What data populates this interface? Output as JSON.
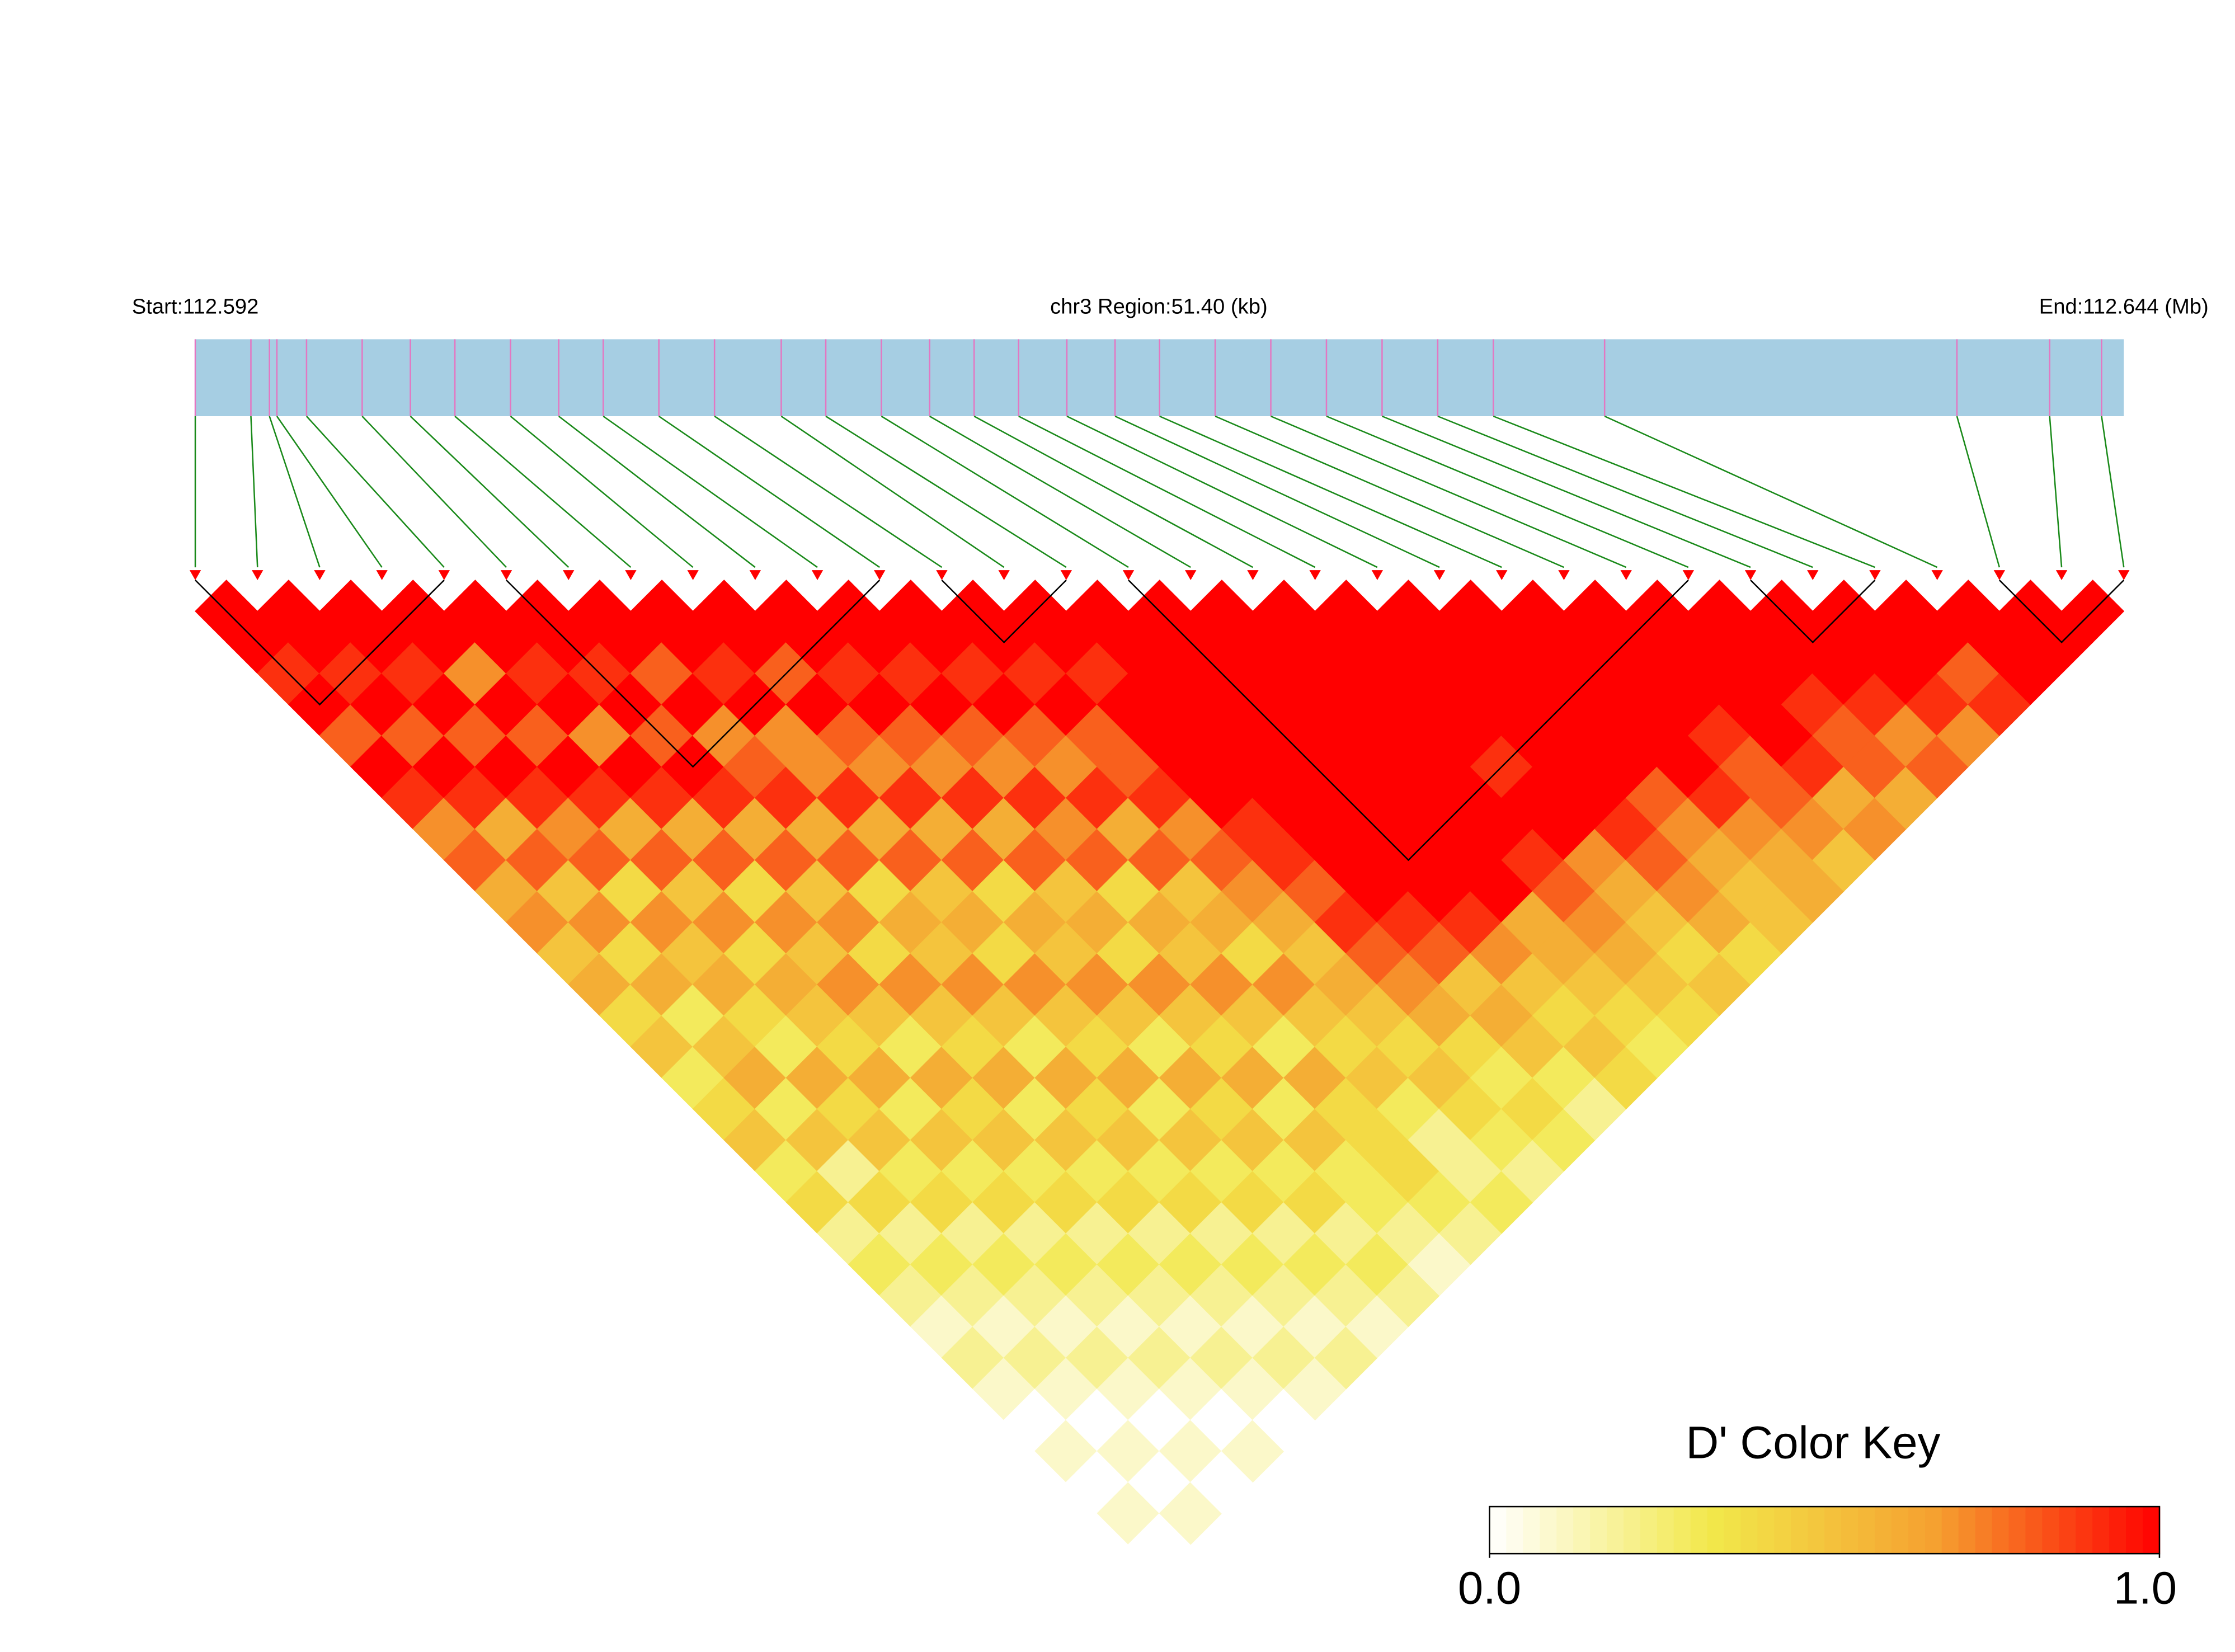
{
  "chart_data": {
    "type": "ld-heatmap",
    "start_label": "Start:112.592",
    "region_label": "chr3 Region:51.40 (kb)",
    "end_label": "End:112.644 (Mb)",
    "xlim": [
      112.592,
      112.644
    ],
    "snp_positions": [
      112.592,
      112.5935,
      112.594,
      112.5942,
      112.595,
      112.5965,
      112.5978,
      112.599,
      112.6005,
      112.6018,
      112.603,
      112.6045,
      112.606,
      112.6078,
      112.609,
      112.6105,
      112.6118,
      112.613,
      112.6142,
      112.6155,
      112.6168,
      112.618,
      112.6195,
      112.621,
      112.6225,
      112.624,
      112.6255,
      112.627,
      112.63,
      112.6395,
      112.642,
      112.6434
    ],
    "dprime": [
      [
        1
      ],
      [
        1,
        1
      ],
      [
        0.9,
        1,
        1
      ],
      [
        1,
        0.9,
        1,
        1
      ],
      [
        0.8,
        1,
        0.9,
        1,
        1
      ],
      [
        1,
        0.8,
        1,
        0.7,
        1,
        1
      ],
      [
        0.9,
        1,
        0.8,
        1,
        0.9,
        1,
        1
      ],
      [
        0.7,
        0.9,
        1,
        0.8,
        1,
        0.9,
        1,
        1
      ],
      [
        0.8,
        0.6,
        0.9,
        1,
        0.7,
        1,
        0.8,
        1,
        1
      ],
      [
        0.6,
        0.8,
        0.7,
        0.9,
        1,
        0.8,
        1,
        0.9,
        1,
        1
      ],
      [
        0.7,
        0.5,
        0.8,
        0.6,
        0.9,
        1,
        0.7,
        1,
        0.8,
        1,
        1
      ],
      [
        0.5,
        0.7,
        0.4,
        0.8,
        0.6,
        0.9,
        0.8,
        0.7,
        1,
        0.9,
        1,
        1
      ],
      [
        0.6,
        0.4,
        0.7,
        0.5,
        0.8,
        0.6,
        0.9,
        0.7,
        0.8,
        1,
        0.9,
        1,
        1
      ],
      [
        0.4,
        0.6,
        0.5,
        0.7,
        0.4,
        0.8,
        0.6,
        0.9,
        0.7,
        0.8,
        1,
        0.9,
        1,
        1
      ],
      [
        0.5,
        0.3,
        0.6,
        0.4,
        0.7,
        0.5,
        0.8,
        0.6,
        0.9,
        0.7,
        0.8,
        1,
        0.9,
        1,
        1
      ],
      [
        0.3,
        0.5,
        0.4,
        0.6,
        0.5,
        0.7,
        0.4,
        0.8,
        0.6,
        0.9,
        0.7,
        0.8,
        1,
        0.9,
        1,
        1
      ],
      [
        0.4,
        0.6,
        0.3,
        0.5,
        0.7,
        0.4,
        0.6,
        0.5,
        0.8,
        0.6,
        0.9,
        0.7,
        0.8,
        1,
        1,
        1,
        1
      ],
      [
        0.5,
        0.3,
        0.6,
        0.4,
        0.5,
        0.7,
        0.5,
        0.6,
        0.4,
        0.8,
        0.7,
        0.9,
        0.8,
        1,
        1,
        1,
        1,
        1
      ],
      [
        0.3,
        0.5,
        0.4,
        0.6,
        0.3,
        0.5,
        0.7,
        0.4,
        0.6,
        0.5,
        0.8,
        0.6,
        0.9,
        1,
        1,
        1,
        1,
        1,
        1
      ],
      [
        0.4,
        0.2,
        0.5,
        0.3,
        0.6,
        0.4,
        0.5,
        0.7,
        0.5,
        0.6,
        0.4,
        0.8,
        0.7,
        1,
        1,
        1,
        1,
        1,
        1,
        1
      ],
      [
        0.2,
        0.4,
        0.3,
        0.5,
        0.4,
        0.6,
        0.3,
        0.5,
        0.7,
        0.4,
        0.6,
        0.5,
        0.8,
        0.9,
        1,
        1,
        1,
        1,
        1,
        1,
        1
      ],
      [
        0.3,
        0.2,
        0.4,
        0.3,
        0.5,
        0.3,
        0.6,
        0.4,
        0.5,
        0.7,
        0.5,
        0.6,
        0.7,
        0.9,
        1,
        1,
        1,
        1,
        1,
        1,
        1,
        1
      ],
      [
        0.2,
        0.3,
        0.2,
        0.4,
        0.3,
        0.5,
        0.4,
        0.6,
        0.3,
        0.5,
        0.7,
        0.4,
        0.6,
        0.8,
        1,
        1,
        1,
        1,
        1,
        1,
        1,
        1,
        1
      ],
      [
        0.1,
        0.2,
        0.3,
        0.2,
        0.4,
        0.3,
        0.5,
        0.3,
        0.6,
        0.4,
        0.5,
        0.7,
        0.5,
        0.9,
        1,
        1,
        1,
        1,
        0.9,
        1,
        1,
        1,
        1,
        1
      ],
      [
        0.2,
        0.1,
        0.2,
        0.3,
        0.2,
        0.4,
        0.3,
        0.5,
        0.4,
        0.6,
        0.3,
        0.5,
        0.6,
        0.8,
        0.9,
        1,
        1,
        1,
        1,
        1,
        1,
        1,
        1,
        1,
        1
      ],
      [
        0.1,
        0.2,
        0.1,
        0.2,
        0.3,
        0.2,
        0.4,
        0.3,
        0.5,
        0.3,
        0.6,
        0.4,
        0.5,
        0.7,
        0.8,
        0.9,
        1,
        0.9,
        1,
        1,
        1,
        1,
        1,
        1,
        1,
        1
      ],
      [
        0,
        0.1,
        0.2,
        0.1,
        0.2,
        0.3,
        0.2,
        0.4,
        0.3,
        0.5,
        0.4,
        0.5,
        0.4,
        0.6,
        0.5,
        0.7,
        0.6,
        0.8,
        0.7,
        0.9,
        0.8,
        1,
        0.9,
        1,
        1,
        1,
        1
      ],
      [
        0.1,
        0,
        0.1,
        0.2,
        0.1,
        0.2,
        0.3,
        0.2,
        0.4,
        0.3,
        0.4,
        0.3,
        0.5,
        0.4,
        0.6,
        0.5,
        0.6,
        0.7,
        0.6,
        0.8,
        0.7,
        0.9,
        0.8,
        1,
        0.9,
        1,
        1,
        1
      ],
      [
        0,
        0.1,
        0,
        0.1,
        0.2,
        0.1,
        0.2,
        0.3,
        0.2,
        0.3,
        0.4,
        0.2,
        0.4,
        0.3,
        0.5,
        0.4,
        0.5,
        0.6,
        0.5,
        0.7,
        0.6,
        0.7,
        0.8,
        0.9,
        0.8,
        0.9,
        1,
        1,
        1
      ],
      [
        0.1,
        0,
        0.1,
        0,
        0.1,
        0.2,
        0.1,
        0.2,
        0.3,
        0.2,
        0.3,
        0.2,
        0.3,
        0.4,
        0.3,
        0.5,
        0.4,
        0.5,
        0.4,
        0.6,
        0.5,
        0.6,
        0.7,
        0.6,
        0.8,
        0.7,
        0.9,
        0.8,
        1,
        1
      ],
      [
        0,
        0.1,
        0,
        0.1,
        0,
        0.1,
        0.2,
        0.1,
        0.2,
        0.1,
        0.2,
        0.3,
        0.2,
        0.3,
        0.2,
        0.4,
        0.3,
        0.4,
        0.5,
        0.4,
        0.5,
        0.6,
        0.5,
        0.7,
        0.6,
        0.8,
        0.7,
        0.9,
        1,
        1,
        1
      ]
    ],
    "blocks": [
      [
        0,
        4
      ],
      [
        5,
        11
      ],
      [
        12,
        14
      ],
      [
        15,
        24
      ],
      [
        25,
        27
      ],
      [
        29,
        31
      ]
    ],
    "colorscale": [
      "#ffffff",
      "#f2e84a",
      "#f5a030",
      "#ff0000"
    ],
    "bar_color": "#a6cee3",
    "snp_line_color": "#e377c2",
    "connector_color": "#1a8a1a",
    "key_title": "D' Color Key",
    "key_ticks": [
      {
        "value": 0,
        "label": "0.0"
      },
      {
        "value": 1,
        "label": "1.0"
      }
    ]
  }
}
